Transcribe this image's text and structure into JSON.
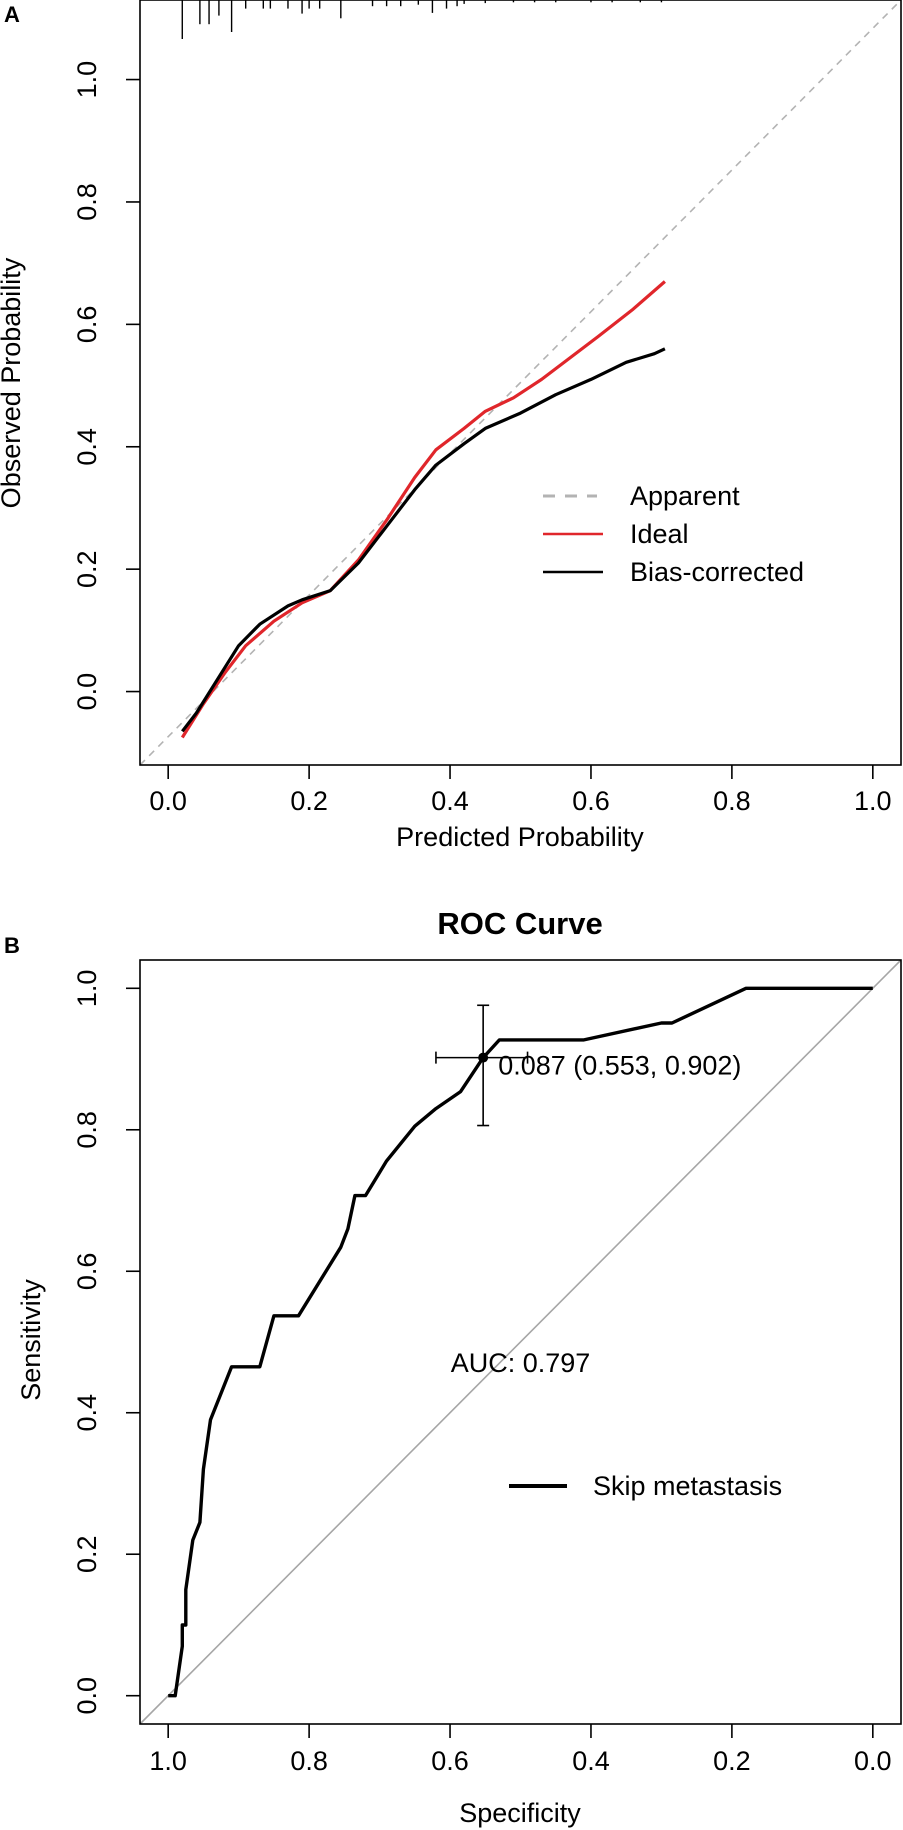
{
  "panel_labels": {
    "a": "A",
    "b": "B"
  },
  "chart_data": [
    {
      "type": "line",
      "panel": "A",
      "title": "",
      "xlabel": "Predicted Probability",
      "ylabel": "Observed Probability",
      "xlim": [
        -0.04,
        1.04
      ],
      "ylim": [
        -0.12,
        1.13
      ],
      "x_ticks": [
        0.0,
        0.2,
        0.4,
        0.6,
        0.8,
        1.0
      ],
      "x_tick_labels": [
        "0.0",
        "0.2",
        "0.4",
        "0.6",
        "0.8",
        "1.0"
      ],
      "y_ticks": [
        0.0,
        0.2,
        0.4,
        0.6,
        0.8,
        1.0
      ],
      "y_tick_labels": [
        "0.0",
        "0.2",
        "0.4",
        "0.6",
        "0.8",
        "1.0"
      ],
      "grid": false,
      "legend_position": "right",
      "series": [
        {
          "name": "Apparent",
          "color": "#b3b3b3",
          "style": "dashed",
          "x": [
            -0.04,
            1.04
          ],
          "y": [
            -0.12,
            1.13
          ]
        },
        {
          "name": "Ideal",
          "color": "#e0262b",
          "style": "solid",
          "x": [
            0.02,
            0.05,
            0.08,
            0.11,
            0.15,
            0.19,
            0.23,
            0.27,
            0.31,
            0.35,
            0.38,
            0.42,
            0.45,
            0.49,
            0.53,
            0.57,
            0.61,
            0.66,
            0.705
          ],
          "y": [
            -0.075,
            -0.02,
            0.03,
            0.075,
            0.115,
            0.145,
            0.165,
            0.215,
            0.28,
            0.35,
            0.395,
            0.43,
            0.458,
            0.48,
            0.51,
            0.545,
            0.58,
            0.625,
            0.67
          ]
        },
        {
          "name": "Bias-corrected",
          "color": "#000000",
          "style": "solid",
          "x": [
            0.02,
            0.04,
            0.07,
            0.1,
            0.13,
            0.17,
            0.19,
            0.23,
            0.27,
            0.31,
            0.35,
            0.38,
            0.42,
            0.45,
            0.5,
            0.55,
            0.6,
            0.65,
            0.69,
            0.705
          ],
          "y": [
            -0.065,
            -0.035,
            0.02,
            0.075,
            0.11,
            0.14,
            0.15,
            0.165,
            0.21,
            0.27,
            0.33,
            0.37,
            0.405,
            0.43,
            0.455,
            0.485,
            0.51,
            0.538,
            0.552,
            0.56
          ]
        }
      ],
      "rug_marks": [
        {
          "x": 0.02,
          "len": 1.0
        },
        {
          "x": 0.045,
          "len": 0.62
        },
        {
          "x": 0.058,
          "len": 0.62
        },
        {
          "x": 0.072,
          "len": 0.4
        },
        {
          "x": 0.09,
          "len": 0.82
        },
        {
          "x": 0.11,
          "len": 0.22
        },
        {
          "x": 0.135,
          "len": 0.22
        },
        {
          "x": 0.145,
          "len": 0.22
        },
        {
          "x": 0.17,
          "len": 0.22
        },
        {
          "x": 0.19,
          "len": 0.35
        },
        {
          "x": 0.2,
          "len": 0.22
        },
        {
          "x": 0.215,
          "len": 0.22
        },
        {
          "x": 0.245,
          "len": 0.47
        },
        {
          "x": 0.29,
          "len": 0.16
        },
        {
          "x": 0.31,
          "len": 0.16
        },
        {
          "x": 0.33,
          "len": 0.16
        },
        {
          "x": 0.355,
          "len": 0.12
        },
        {
          "x": 0.375,
          "len": 0.33
        },
        {
          "x": 0.395,
          "len": 0.22
        },
        {
          "x": 0.41,
          "len": 0.16
        },
        {
          "x": 0.42,
          "len": 0.1
        },
        {
          "x": 0.45,
          "len": 0.08
        },
        {
          "x": 0.49,
          "len": 0.06
        },
        {
          "x": 0.52,
          "len": 0.06
        },
        {
          "x": 0.55,
          "len": 0.06
        },
        {
          "x": 0.6,
          "len": 0.06
        },
        {
          "x": 0.63,
          "len": 0.06
        },
        {
          "x": 0.67,
          "len": 0.06
        },
        {
          "x": 0.7,
          "len": 0.06
        }
      ]
    },
    {
      "type": "line",
      "panel": "B",
      "title": "ROC Curve",
      "xlabel": "Specificity",
      "ylabel": "Sensitivity",
      "xlim": [
        1.04,
        -0.04
      ],
      "ylim": [
        -0.04,
        1.04
      ],
      "x_reversed": true,
      "x_ticks": [
        1.0,
        0.8,
        0.6,
        0.4,
        0.2,
        0.0
      ],
      "x_tick_labels": [
        "1.0",
        "0.8",
        "0.6",
        "0.4",
        "0.2",
        "0.0"
      ],
      "y_ticks": [
        0.0,
        0.2,
        0.4,
        0.6,
        0.8,
        1.0
      ],
      "y_tick_labels": [
        "0.0",
        "0.2",
        "0.4",
        "0.6",
        "0.8",
        "1.0"
      ],
      "grid": false,
      "legend_position": "lower-right",
      "auc_label": "AUC: 0.797",
      "auc_label_anchor": {
        "x": 0.5,
        "y": 0.47
      },
      "threshold_point": {
        "label": "0.087 (0.553, 0.902)",
        "specificity": 0.553,
        "sensitivity": 0.902,
        "spec_ci": [
          0.62,
          0.49
        ],
        "sens_ci": [
          0.806,
          0.976
        ]
      },
      "series": [
        {
          "name": "Skip metastasis",
          "color": "#000000",
          "style": "solid",
          "specificity": [
            1.0,
            0.99,
            0.98,
            0.98,
            0.975,
            0.975,
            0.965,
            0.955,
            0.95,
            0.94,
            0.91,
            0.87,
            0.85,
            0.815,
            0.755,
            0.745,
            0.735,
            0.72,
            0.69,
            0.65,
            0.62,
            0.585,
            0.553,
            0.53,
            0.41,
            0.3,
            0.285,
            0.18,
            0.0
          ],
          "sensitivity": [
            0.0,
            0.0,
            0.07,
            0.1,
            0.1,
            0.15,
            0.22,
            0.245,
            0.32,
            0.39,
            0.465,
            0.465,
            0.537,
            0.537,
            0.634,
            0.66,
            0.707,
            0.707,
            0.756,
            0.805,
            0.83,
            0.854,
            0.902,
            0.927,
            0.927,
            0.951,
            0.951,
            1.0,
            1.0
          ]
        },
        {
          "name": "reference",
          "color": "#a6a6a6",
          "style": "solid",
          "specificity": [
            1.04,
            -0.04
          ],
          "sensitivity": [
            -0.04,
            1.04
          ]
        }
      ]
    }
  ]
}
